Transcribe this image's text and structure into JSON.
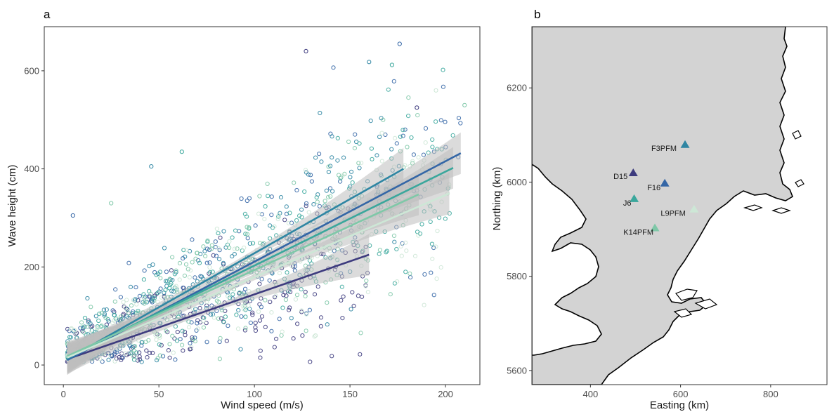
{
  "colors": {
    "D15": "#3d3b7e",
    "F16": "#3466a6",
    "F3PFM": "#2f86a3",
    "J6": "#3aa79c",
    "K14PFM": "#7fc8a8",
    "L9PFM": "#cde7d6",
    "band": "#bdbdbd",
    "land": "#d3d3d3"
  },
  "chart_data": [
    {
      "panel": "a",
      "type": "scatter",
      "xlabel": "Wind speed (m/s)",
      "ylabel": "Wave height (cm)",
      "xlim": [
        -10,
        218
      ],
      "ylim": [
        -40,
        690
      ],
      "xticks": [
        0,
        50,
        100,
        150,
        200
      ],
      "yticks": [
        0,
        200,
        400,
        600
      ],
      "grid": false,
      "n_points_per_series": 230,
      "series": [
        {
          "station": "D15",
          "color": "#3d3b7e",
          "fit": {
            "x0": 2,
            "x1": 160,
            "y0": 12,
            "y1": 225
          }
        },
        {
          "station": "F16",
          "color": "#3466a6",
          "fit": {
            "x0": 2,
            "x1": 208,
            "y0": 10,
            "y1": 432
          }
        },
        {
          "station": "F3PFM",
          "color": "#2f86a3",
          "fit": {
            "x0": 2,
            "x1": 178,
            "y0": 12,
            "y1": 400
          }
        },
        {
          "station": "J6",
          "color": "#3aa79c",
          "fit": {
            "x0": 2,
            "x1": 204,
            "y0": 15,
            "y1": 402
          }
        },
        {
          "station": "K14PFM",
          "color": "#7fc8a8",
          "fit": {
            "x0": 2,
            "x1": 186,
            "y0": 18,
            "y1": 348
          }
        },
        {
          "station": "L9PFM",
          "color": "#cde7d6",
          "fit": {
            "x0": 2,
            "x1": 202,
            "y0": 15,
            "y1": 350
          }
        }
      ],
      "outliers": [
        {
          "x": 127,
          "y": 640
        },
        {
          "x": 176,
          "y": 655
        },
        {
          "x": 160,
          "y": 618
        },
        {
          "x": 172,
          "y": 612
        },
        {
          "x": 210,
          "y": 530
        },
        {
          "x": 195,
          "y": 560
        },
        {
          "x": 185,
          "y": 525
        },
        {
          "x": 5,
          "y": 305
        },
        {
          "x": 46,
          "y": 405
        },
        {
          "x": 62,
          "y": 435
        },
        {
          "x": 25,
          "y": 330
        },
        {
          "x": 132,
          "y": 60
        }
      ]
    },
    {
      "panel": "b",
      "type": "map",
      "xlabel": "Easting (km)",
      "ylabel": "Northing (km)",
      "xlim": [
        270,
        925
      ],
      "ylim": [
        5570,
        6330
      ],
      "xticks": [
        400,
        600,
        800
      ],
      "yticks": [
        5600,
        5800,
        6000,
        6200
      ],
      "grid": false,
      "stations": [
        {
          "name": "F3PFM",
          "x": 610,
          "y": 6080
        },
        {
          "name": "D15",
          "x": 495,
          "y": 6020
        },
        {
          "name": "F16",
          "x": 565,
          "y": 5998
        },
        {
          "name": "J6",
          "x": 497,
          "y": 5965
        },
        {
          "name": "L9PFM",
          "x": 630,
          "y": 5943
        },
        {
          "name": "K14PFM",
          "x": 543,
          "y": 5903
        }
      ]
    }
  ],
  "panel_a": {
    "letter": "a",
    "xticks": [
      "0",
      "50",
      "100",
      "150",
      "200"
    ],
    "yticks": [
      "0",
      "200",
      "400",
      "600"
    ]
  },
  "panel_b": {
    "letter": "b",
    "xticks": [
      "400",
      "600",
      "800"
    ],
    "yticks": [
      "5600",
      "5800",
      "6000",
      "6200"
    ]
  }
}
